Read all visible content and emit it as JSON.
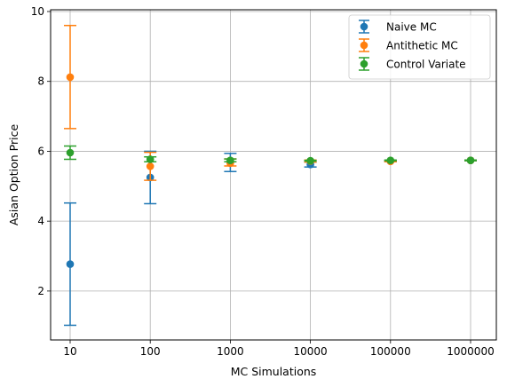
{
  "chart_data": {
    "type": "scatter",
    "title": "",
    "xlabel": "MC Simulations",
    "ylabel": "Asian Option Price",
    "categories": [
      "10",
      "100",
      "1000",
      "10000",
      "100000",
      "1000000"
    ],
    "yticks": [
      2,
      4,
      6,
      8,
      10
    ],
    "ylim": [
      0.6,
      10.05
    ],
    "grid": true,
    "legend_position": "top-right",
    "series": [
      {
        "name": "Naive MC",
        "color": "#1f77b4",
        "values": [
          2.77,
          5.25,
          5.68,
          5.62,
          5.72,
          5.74
        ],
        "lower": [
          1.02,
          4.5,
          5.42,
          5.55,
          5.7,
          5.73
        ],
        "upper": [
          4.52,
          6.0,
          5.94,
          5.69,
          5.74,
          5.75
        ]
      },
      {
        "name": "Antithetic MC",
        "color": "#ff7f0e",
        "values": [
          8.12,
          5.57,
          5.66,
          5.72,
          5.71,
          5.74
        ],
        "lower": [
          6.65,
          5.17,
          5.58,
          5.69,
          5.7,
          5.73
        ],
        "upper": [
          9.6,
          5.97,
          5.78,
          5.75,
          5.72,
          5.75
        ]
      },
      {
        "name": "Control Variate",
        "color": "#2ca02c",
        "values": [
          5.96,
          5.77,
          5.74,
          5.73,
          5.74,
          5.74
        ],
        "lower": [
          5.77,
          5.7,
          5.7,
          5.72,
          5.73,
          5.73
        ],
        "upper": [
          6.15,
          5.84,
          5.78,
          5.74,
          5.75,
          5.75
        ]
      }
    ]
  }
}
